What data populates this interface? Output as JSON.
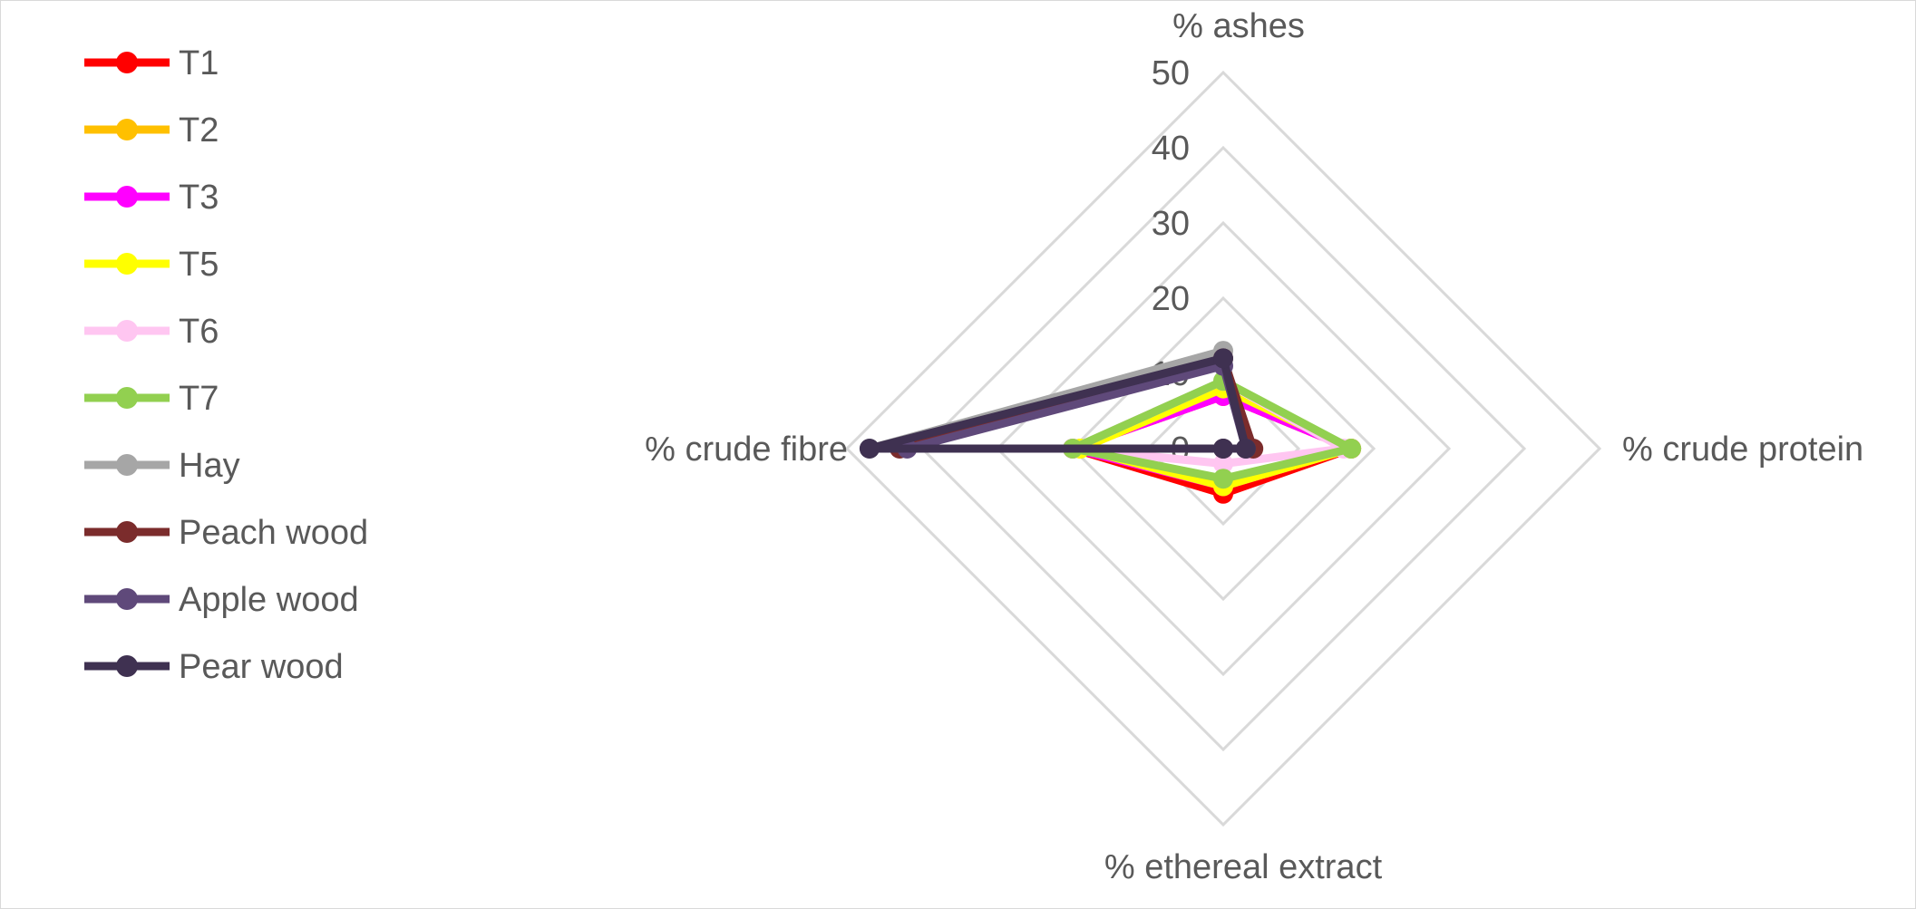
{
  "chart_data": {
    "type": "radar",
    "axes": [
      "% ashes",
      "% crude protein",
      "% ethereal extract",
      "% crude fibre"
    ],
    "ticks": [
      "0",
      "10",
      "20",
      "30",
      "40",
      "50"
    ],
    "range": [
      0,
      50
    ],
    "grid": true,
    "legend_position": "left",
    "series": [
      {
        "name": "T1",
        "color": "#ff0000",
        "values": [
          7,
          17,
          6,
          20
        ]
      },
      {
        "name": "T2",
        "color": "#ffc000",
        "values": [
          8,
          17,
          5,
          19
        ]
      },
      {
        "name": "T3",
        "color": "#ff00ff",
        "values": [
          7,
          17,
          5,
          20
        ]
      },
      {
        "name": "T5",
        "color": "#ffff00",
        "values": [
          8,
          17,
          5,
          19
        ]
      },
      {
        "name": "T6",
        "color": "#ffc6f1",
        "values": [
          9,
          16,
          2,
          20
        ]
      },
      {
        "name": "T7",
        "color": "#92d050",
        "values": [
          9,
          17,
          4,
          20
        ]
      },
      {
        "name": "Hay",
        "color": "#a6a6a6",
        "values": [
          13,
          3,
          0,
          47
        ]
      },
      {
        "name": "Peach wood",
        "color": "#7b2c2c",
        "values": [
          12,
          4,
          0,
          43
        ]
      },
      {
        "name": "Apple wood",
        "color": "#5f497a",
        "values": [
          11,
          3,
          0,
          42
        ]
      },
      {
        "name": "Pear wood",
        "color": "#3f3151",
        "values": [
          12,
          3,
          0,
          47
        ]
      }
    ]
  }
}
